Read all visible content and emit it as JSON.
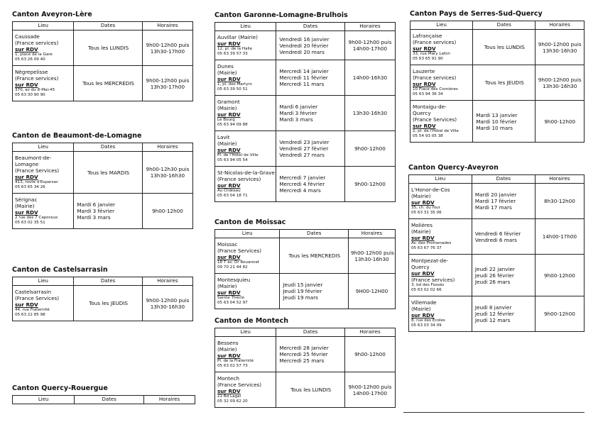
{
  "columns": [
    "Lieu",
    "Dates",
    "Horaires"
  ],
  "cantons": [
    {
      "title": "Canton Aveyron-Lère",
      "rows": [
        {
          "name": [
            "Caussade",
            "(France services)"
          ],
          "rdv": "sur RDV",
          "address": [
            "1, place de la Gare",
            "05 63 26 09 40"
          ],
          "dates": [
            "Tous les LUNDIS"
          ],
          "horaires": [
            "9h00-12h00 puis",
            "13h30-17h00"
          ]
        },
        {
          "name": [
            "Nègrepelisse",
            "(France services)"
          ],
          "rdv": "sur RDV",
          "address": [
            "370, av du 8-Mai-45",
            "05 63 30 90 90"
          ],
          "dates": [
            "Tous les MERCREDIS"
          ],
          "horaires": [
            "9h00-12h00 puis",
            "13h30-17h00"
          ]
        }
      ]
    },
    {
      "title": "Canton de Beaumont-de-Lomagne",
      "rows": [
        {
          "name": [
            "Beaumont-de-",
            "Lomagne",
            "(France Services)"
          ],
          "rdv": "sur RDV",
          "address": [
            "413, route d'Esparsac",
            "05 63 65 34 26"
          ],
          "dates": [
            "Tous les MARDIS"
          ],
          "horaires": [
            "9h00-12h30 puis",
            "13h30-16h30"
          ]
        },
        {
          "name": [
            "Sérignac",
            "(Mairie)"
          ],
          "rdv": "sur RDV",
          "address": [
            "2 rue des 7 Caporaux",
            "05 63 02 35 51"
          ],
          "dates": [
            "Mardi 6 janvier",
            "Mardi 3 février",
            "Mardi 3 mars"
          ],
          "horaires": [
            "9h00-12h00"
          ]
        }
      ]
    },
    {
      "title": "Canton de Castelsarrasin",
      "rows": [
        {
          "name": [
            "Castelsarrasin",
            "(France Services)"
          ],
          "rdv": "sur RDV",
          "address": [
            "44, rue Fraternité",
            "05 63 22 85 98"
          ],
          "dates": [
            "Tous les JEUDIS"
          ],
          "horaires": [
            "9h00-12h00 puis",
            "13h30-16h30"
          ]
        }
      ]
    },
    {
      "title": "Canton Quercy-Rouergue",
      "rows": []
    },
    {
      "title": "Canton Garonne-Lomagne-Brulhois",
      "rows": [
        {
          "name": [
            "Auvillar (Mairie)"
          ],
          "rdv": "sur RDV",
          "address": [
            "12, pl. de la Halle",
            "05 63 39 57 33"
          ],
          "dates": [
            "Vendredi 16 janvier",
            "Vendredi 20 février",
            "Vendredi 20 mars"
          ],
          "horaires": [
            "9h00-12h00 puis",
            "14h00-17h00"
          ]
        },
        {
          "name": [
            "Dunes",
            "(Mairie)"
          ],
          "rdv": "sur RDV",
          "address": [
            "1, pl. des Martyrs",
            "05 63 39 50 51"
          ],
          "dates": [
            "Mercredi 14 janvier",
            "Mercredi 11 février",
            "Mercredi 11 mars"
          ],
          "horaires": [
            "14h00-16h30"
          ]
        },
        {
          "name": [
            "Gramont",
            "(Mairie)"
          ],
          "rdv": "sur RDV",
          "address": [
            "Le Bourg",
            "05 63 94 09 88"
          ],
          "dates": [
            "Mardi 6 janvier",
            "Mardi 3 février",
            "Mardi 3 mars"
          ],
          "horaires": [
            "13h30-16h30"
          ]
        },
        {
          "name": [
            "Lavit",
            "(Mairie)"
          ],
          "rdv": "sur RDV",
          "address": [
            "Pl. de l'Hôtel de Ville",
            "05 63 94 05 54"
          ],
          "dates": [
            "Vendredi 23 janvier",
            "Vendredi 27 février",
            "Vendredi 27 mars"
          ],
          "horaires": [
            "9h00-12h00"
          ]
        },
        {
          "name": [
            "St-Nicolas-de-la-Grave",
            "(France services)"
          ],
          "rdv": "sur RDV",
          "address": [
            "Au Château",
            "05 63 04 18 71"
          ],
          "dates": [
            "Mercredi 7 janvier",
            "Mercredi 4 février",
            "Mercredi 4 mars"
          ],
          "horaires": [
            "9h00-12h00"
          ]
        }
      ]
    },
    {
      "title": "Canton de Moissac",
      "rows": [
        {
          "name": [
            "Moissac",
            "(France Services)"
          ],
          "rdv": "sur RDV",
          "address": [
            "18 T av. Dr Rouannet",
            "09 70 21 44 82"
          ],
          "dates": [
            "Tous les MERCREDIS"
          ],
          "horaires": [
            "9h00-12h00 puis",
            "13h30-16h30"
          ]
        },
        {
          "name": [
            "Montesquieu",
            "(Mairie)"
          ],
          "rdv": "sur RDV",
          "address": [
            "Sainte Thècle",
            "05 63 04 52 97"
          ],
          "dates": [
            "Jeudi 15 janvier",
            "Jeudi 19 février",
            "Jeudi 19 mars"
          ],
          "horaires": [
            "9H00-12H00"
          ]
        }
      ]
    },
    {
      "title": "Canton de Montech",
      "rows": [
        {
          "name": [
            "Bessens",
            "(Mairie)"
          ],
          "rdv": "sur RDV",
          "address": [
            "Pl. de la Fraternité",
            "05 63 02 57 73"
          ],
          "dates": [
            "Mercredi 28 janvier",
            "Mercredi 25 février",
            "Mercredi 25 mars"
          ],
          "horaires": [
            "9h00-12h00"
          ]
        },
        {
          "name": [
            "Montech",
            "(France Services)"
          ],
          "rdv": "sur RDV",
          "address": [
            "21 Bd Lagal",
            "05 32 09 62 20"
          ],
          "dates": [
            "Tous les LUNDIS"
          ],
          "horaires": [
            "9h00-12h00 puis",
            "14h00-17h00"
          ]
        }
      ]
    },
    {
      "title": "Canton Pays de Serres-Sud-Quercy",
      "rows": [
        {
          "name": [
            "Lafrançaise",
            "(France services)"
          ],
          "rdv": "sur RDV",
          "address": [
            "33, rue Mary Lafon",
            "05 63 65 91 90"
          ],
          "dates": [
            "Tous les LUNDIS"
          ],
          "horaires": [
            "9h00-12h00 puis",
            "13h30-16h30"
          ]
        },
        {
          "name": [
            "Lauzerte",
            "(France services)"
          ],
          "rdv": "sur RDV",
          "address": [
            "10 Place des Cornières",
            "05 63 94 36 34"
          ],
          "dates": [
            "Tous les JEUDIS"
          ],
          "horaires": [
            "9h00-12h00 puis",
            "13h30-16h30"
          ]
        },
        {
          "name": [
            "Montaigu-de-",
            "Quercy",
            "(France Services)"
          ],
          "rdv": "sur RDV",
          "address": [
            "2, pl. de l'Hôtel de Ville",
            "05 54 93 05 38"
          ],
          "dates": [
            "Mardi 13 janvier",
            "Mardi 10 février",
            "Mardi 10 mars"
          ],
          "horaires": [
            "9h00-12h00"
          ]
        }
      ]
    },
    {
      "title": "Canton Quercy-Aveyron",
      "rows": [
        {
          "name": [
            "L'Honor-de-Cos",
            "(Mairie)"
          ],
          "rdv": "sur RDV",
          "address": [
            "35, ch. du four",
            "05 63 31 35 06"
          ],
          "dates": [
            "Mardi 20 janvier",
            "Mardi 17 février",
            "Mardi 17 mars"
          ],
          "horaires": [
            "8h30-12h00"
          ]
        },
        {
          "name": [
            "Molières",
            "(Mairie)"
          ],
          "rdv": "sur RDV",
          "address": [
            "Av. des Promenades",
            "05 63 67 76 37"
          ],
          "dates": [
            "Vendredi 6 février",
            "Vendredi 6 mars"
          ],
          "horaires": [
            "14h00-17h00"
          ]
        },
        {
          "name": [
            "Montpezat-de-",
            "Quercy"
          ],
          "rdv": "sur RDV",
          "note": [
            "(France services)"
          ],
          "address": [
            "3, bd des Fossés",
            "05 63 02 02 66"
          ],
          "dates": [
            "Jeudi 22 janvier",
            "Jeudi 26 février",
            "Jeudi 26 mars"
          ],
          "horaires": [
            "9h00-12h00"
          ]
        },
        {
          "name": [
            "Villemade",
            "(Mairie)"
          ],
          "rdv": "sur RDV",
          "address": [
            "8, rue des Ecoles",
            "05 63 03 34 09"
          ],
          "dates": [
            "Jeudi 8 janvier",
            "Jeudi 12 février",
            "Jeudi 12 mars"
          ],
          "horaires": [
            "9h00-12h00"
          ]
        }
      ]
    }
  ]
}
